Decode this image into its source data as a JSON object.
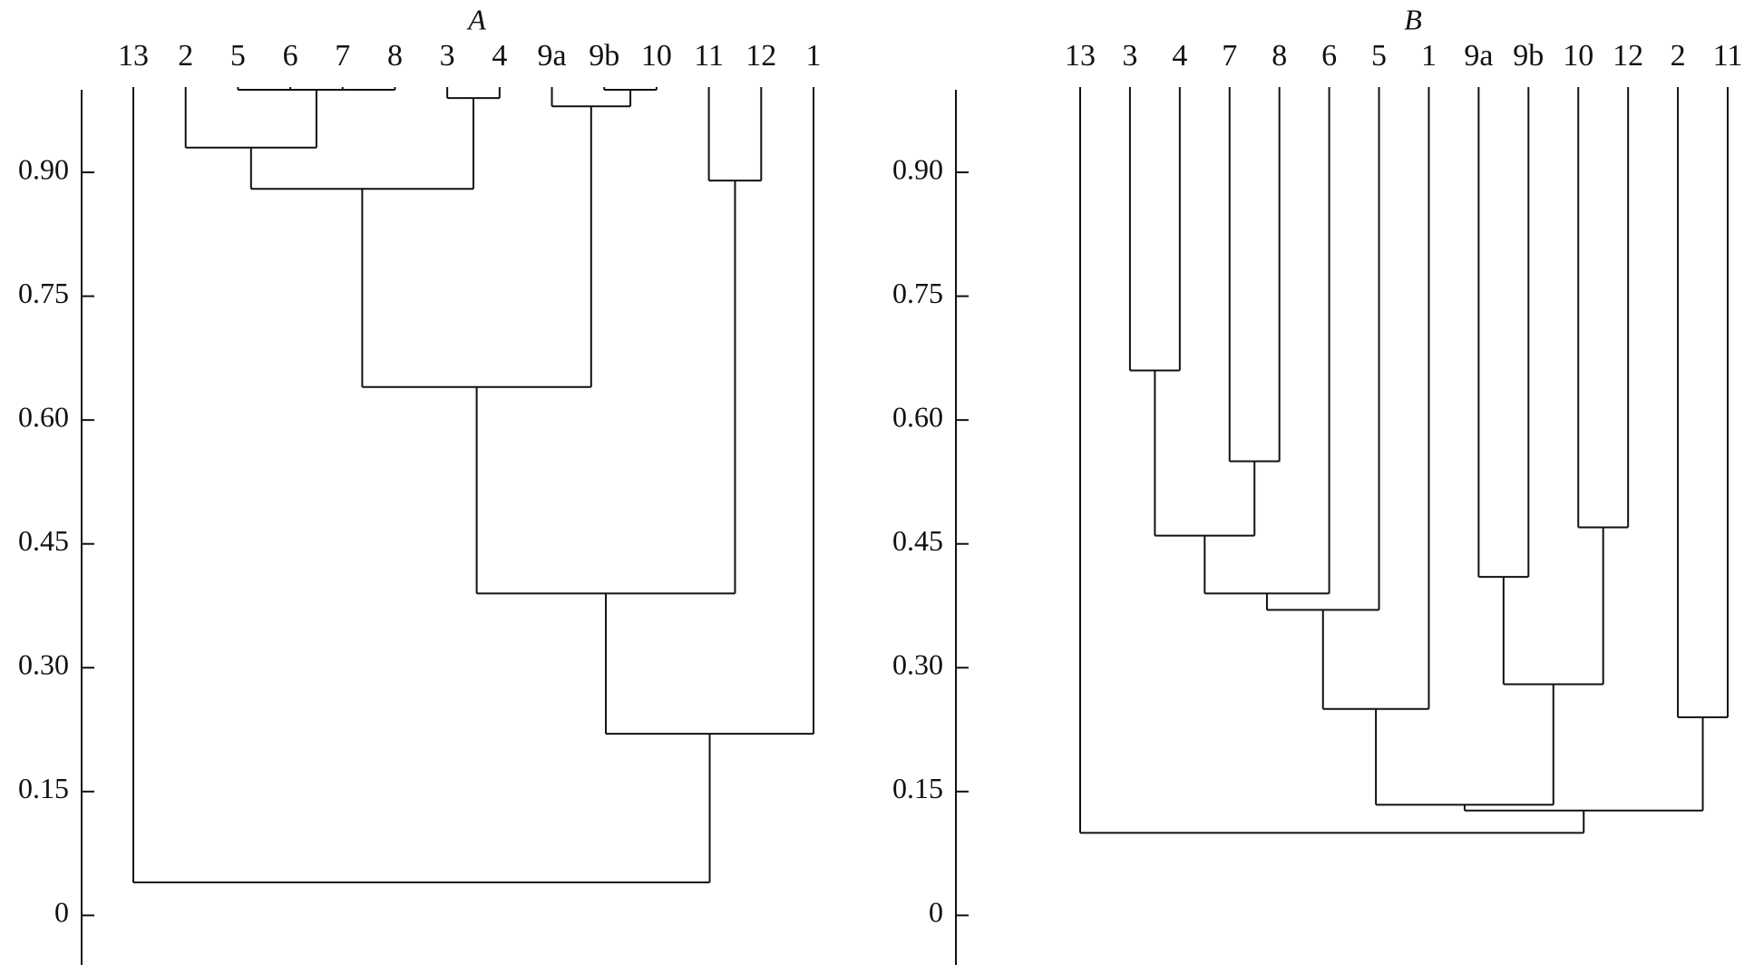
{
  "chart_data": [
    {
      "type": "dendrogram",
      "title": "A",
      "ylim": [
        -0.06,
        1.0
      ],
      "yticks": [
        0,
        0.15,
        {
          "value": 0.3,
          "label": "0.30"
        },
        0.45,
        {
          "value": 0.6,
          "label": "0.60"
        },
        0.75,
        {
          "value": 0.9,
          "label": "0.90"
        }
      ],
      "tree": {
        "height": 0.04,
        "children": [
          {
            "label": "13"
          },
          {
            "height": 0.22,
            "children": [
              {
                "height": 0.39,
                "children": [
                  {
                    "height": 0.64,
                    "children": [
                      {
                        "height": 0.88,
                        "children": [
                          {
                            "height": 0.93,
                            "children": [
                              {
                                "label": "2"
                              },
                              {
                                "height": 1.0,
                                "children": [
                                  {
                                    "label": "5"
                                  },
                                  {
                                    "label": "6"
                                  },
                                  {
                                    "label": "7"
                                  },
                                  {
                                    "label": "8"
                                  }
                                ]
                              }
                            ]
                          },
                          {
                            "height": 0.99,
                            "children": [
                              {
                                "label": "3"
                              },
                              {
                                "label": "4"
                              }
                            ]
                          }
                        ]
                      },
                      {
                        "height": 0.98,
                        "children": [
                          {
                            "label": "9a"
                          },
                          {
                            "height": 1.0,
                            "children": [
                              {
                                "label": "9b"
                              },
                              {
                                "label": "10"
                              }
                            ]
                          }
                        ]
                      }
                    ]
                  },
                  {
                    "height": 0.89,
                    "children": [
                      {
                        "label": "11"
                      },
                      {
                        "label": "12"
                      }
                    ]
                  }
                ]
              },
              {
                "label": "1"
              }
            ]
          }
        ]
      }
    },
    {
      "type": "dendrogram",
      "title": "B",
      "ylim": [
        -0.06,
        1.0
      ],
      "yticks": [
        0,
        0.15,
        {
          "value": 0.3,
          "label": "0.30"
        },
        0.45,
        {
          "value": 0.6,
          "label": "0.60"
        },
        0.75,
        {
          "value": 0.9,
          "label": "0.90"
        }
      ],
      "tree": {
        "height": 0.1,
        "children": [
          {
            "label": "13"
          },
          {
            "height": 0.127,
            "children": [
              {
                "height": 0.134,
                "children": [
                  {
                    "height": 0.25,
                    "children": [
                      {
                        "height": 0.37,
                        "children": [
                          {
                            "height": 0.39,
                            "children": [
                              {
                                "height": 0.46,
                                "children": [
                                  {
                                    "height": 0.66,
                                    "children": [
                                      {
                                        "label": "3"
                                      },
                                      {
                                        "label": "4"
                                      }
                                    ]
                                  },
                                  {
                                    "height": 0.55,
                                    "children": [
                                      {
                                        "label": "7"
                                      },
                                      {
                                        "label": "8"
                                      }
                                    ]
                                  }
                                ]
                              },
                              {
                                "label": "6"
                              }
                            ]
                          },
                          {
                            "label": "5"
                          }
                        ]
                      },
                      {
                        "label": "1"
                      }
                    ]
                  },
                  {
                    "height": 0.28,
                    "children": [
                      {
                        "height": 0.41,
                        "children": [
                          {
                            "label": "9a"
                          },
                          {
                            "label": "9b"
                          }
                        ]
                      },
                      {
                        "height": 0.47,
                        "children": [
                          {
                            "label": "10"
                          },
                          {
                            "label": "12"
                          }
                        ]
                      }
                    ]
                  }
                ]
              },
              {
                "height": 0.24,
                "children": [
                  {
                    "label": "2"
                  },
                  {
                    "label": "11"
                  }
                ]
              }
            ]
          }
        ]
      }
    }
  ]
}
